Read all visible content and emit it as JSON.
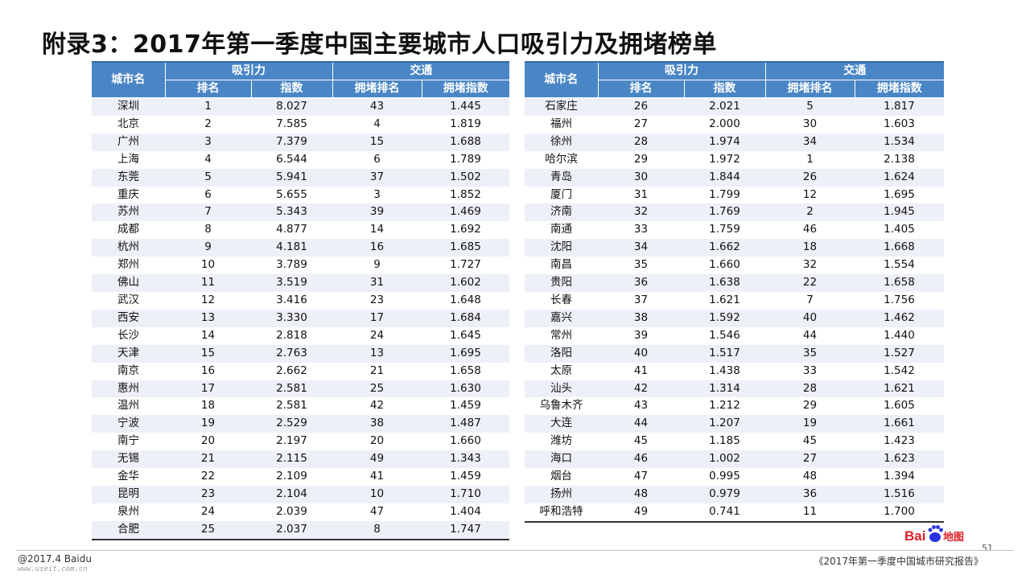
{
  "title": "附录3：2017年第一季度中国主要城市人口吸引力及拥堵榜单",
  "headers": {
    "city": "城市名",
    "attraction": "吸引力",
    "traffic": "交通",
    "rank": "排名",
    "index": "指数",
    "congestion_rank": "拥堵排名",
    "congestion_index": "拥堵指数"
  },
  "left_rows": [
    [
      "深圳",
      "1",
      "8.027",
      "43",
      "1.445"
    ],
    [
      "北京",
      "2",
      "7.585",
      "4",
      "1.819"
    ],
    [
      "广州",
      "3",
      "7.379",
      "15",
      "1.688"
    ],
    [
      "上海",
      "4",
      "6.544",
      "6",
      "1.789"
    ],
    [
      "东莞",
      "5",
      "5.941",
      "37",
      "1.502"
    ],
    [
      "重庆",
      "6",
      "5.655",
      "3",
      "1.852"
    ],
    [
      "苏州",
      "7",
      "5.343",
      "39",
      "1.469"
    ],
    [
      "成都",
      "8",
      "4.877",
      "14",
      "1.692"
    ],
    [
      "杭州",
      "9",
      "4.181",
      "16",
      "1.685"
    ],
    [
      "郑州",
      "10",
      "3.789",
      "9",
      "1.727"
    ],
    [
      "佛山",
      "11",
      "3.519",
      "31",
      "1.602"
    ],
    [
      "武汉",
      "12",
      "3.416",
      "23",
      "1.648"
    ],
    [
      "西安",
      "13",
      "3.330",
      "17",
      "1.684"
    ],
    [
      "长沙",
      "14",
      "2.818",
      "24",
      "1.645"
    ],
    [
      "天津",
      "15",
      "2.763",
      "13",
      "1.695"
    ],
    [
      "南京",
      "16",
      "2.662",
      "21",
      "1.658"
    ],
    [
      "惠州",
      "17",
      "2.581",
      "25",
      "1.630"
    ],
    [
      "温州",
      "18",
      "2.581",
      "42",
      "1.459"
    ],
    [
      "宁波",
      "19",
      "2.529",
      "38",
      "1.487"
    ],
    [
      "南宁",
      "20",
      "2.197",
      "20",
      "1.660"
    ],
    [
      "无锡",
      "21",
      "2.115",
      "49",
      "1.343"
    ],
    [
      "金华",
      "22",
      "2.109",
      "41",
      "1.459"
    ],
    [
      "昆明",
      "23",
      "2.104",
      "10",
      "1.710"
    ],
    [
      "泉州",
      "24",
      "2.039",
      "47",
      "1.404"
    ],
    [
      "合肥",
      "25",
      "2.037",
      "8",
      "1.747"
    ]
  ],
  "right_rows": [
    [
      "石家庄",
      "26",
      "2.021",
      "5",
      "1.817"
    ],
    [
      "福州",
      "27",
      "2.000",
      "30",
      "1.603"
    ],
    [
      "徐州",
      "28",
      "1.974",
      "34",
      "1.534"
    ],
    [
      "哈尔滨",
      "29",
      "1.972",
      "1",
      "2.138"
    ],
    [
      "青岛",
      "30",
      "1.844",
      "26",
      "1.624"
    ],
    [
      "厦门",
      "31",
      "1.799",
      "12",
      "1.695"
    ],
    [
      "济南",
      "32",
      "1.769",
      "2",
      "1.945"
    ],
    [
      "南通",
      "33",
      "1.759",
      "46",
      "1.405"
    ],
    [
      "沈阳",
      "34",
      "1.662",
      "18",
      "1.668"
    ],
    [
      "南昌",
      "35",
      "1.660",
      "32",
      "1.554"
    ],
    [
      "贵阳",
      "36",
      "1.638",
      "22",
      "1.658"
    ],
    [
      "长春",
      "37",
      "1.621",
      "7",
      "1.756"
    ],
    [
      "嘉兴",
      "38",
      "1.592",
      "40",
      "1.462"
    ],
    [
      "常州",
      "39",
      "1.546",
      "44",
      "1.440"
    ],
    [
      "洛阳",
      "40",
      "1.517",
      "35",
      "1.527"
    ],
    [
      "太原",
      "41",
      "1.438",
      "33",
      "1.542"
    ],
    [
      "汕头",
      "42",
      "1.314",
      "28",
      "1.621"
    ],
    [
      "乌鲁木齐",
      "43",
      "1.212",
      "29",
      "1.605"
    ],
    [
      "大连",
      "44",
      "1.207",
      "19",
      "1.661"
    ],
    [
      "潍坊",
      "45",
      "1.185",
      "45",
      "1.423"
    ],
    [
      "海口",
      "46",
      "1.002",
      "27",
      "1.623"
    ],
    [
      "烟台",
      "47",
      "0.995",
      "48",
      "1.394"
    ],
    [
      "扬州",
      "48",
      "0.979",
      "36",
      "1.516"
    ],
    [
      "呼和浩特",
      "49",
      "0.741",
      "11",
      "1.700"
    ]
  ],
  "footer": {
    "copyright": "@2017.4 Baidu",
    "watermark": "www.useit.com.cn",
    "report": "《2017年第一季度中国城市研究报告》",
    "page": "51"
  },
  "logo": {
    "text_bai": "Bai",
    "text_map": "地图"
  },
  "colors": {
    "header_blue": "#4a86c5",
    "stripe": "#eef0f7",
    "baidu_red": "#de1f26",
    "baidu_blue": "#2932e1"
  }
}
